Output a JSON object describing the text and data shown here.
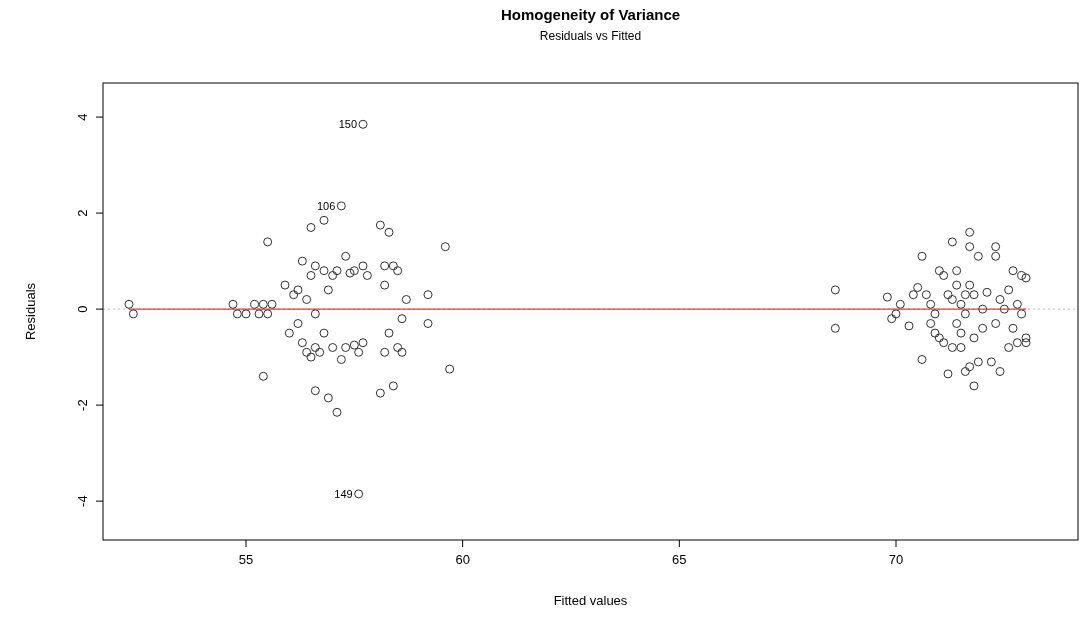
{
  "chart_data": {
    "type": "scatter",
    "title": "Homogeneity of Variance",
    "subtitle": "Residuals vs Fitted",
    "xlabel": "Fitted values",
    "ylabel": "Residuals",
    "xlim": [
      51.7,
      74.2
    ],
    "ylim": [
      -4.81,
      4.71
    ],
    "xticks": [
      55,
      60,
      65,
      70
    ],
    "yticks": [
      -4,
      -2,
      0,
      2,
      4
    ],
    "marker": "circle",
    "series": [
      {
        "color": "#333333",
        "x": [
          52.3,
          52.4,
          54.7,
          54.8,
          55.0,
          55.2,
          55.3,
          55.4,
          55.5,
          55.6,
          55.5,
          55.4,
          55.9,
          56.0,
          56.1,
          56.2,
          56.2,
          56.3,
          56.3,
          56.4,
          56.4,
          56.5,
          56.5,
          56.5,
          56.6,
          56.6,
          56.6,
          56.6,
          56.7,
          56.8,
          56.8,
          56.8,
          56.9,
          56.9,
          57.0,
          57.0,
          57.1,
          57.1,
          57.2,
          57.3,
          57.3,
          57.4,
          57.5,
          57.5,
          57.6,
          57.7,
          57.7,
          57.2,
          57.6,
          57.8,
          57.7,
          58.1,
          58.2,
          58.3,
          58.2,
          58.2,
          58.3,
          58.1,
          58.4,
          58.4,
          58.5,
          58.5,
          58.6,
          58.6,
          58.7,
          59.2,
          59.2,
          59.6,
          59.7,
          68.6,
          68.6,
          69.8,
          69.9,
          70.0,
          70.1,
          70.3,
          70.4,
          70.5,
          70.6,
          70.6,
          70.7,
          70.8,
          70.8,
          70.9,
          70.9,
          71.0,
          71.0,
          71.1,
          71.1,
          71.2,
          71.2,
          71.3,
          71.3,
          71.3,
          71.4,
          71.4,
          71.4,
          71.5,
          71.5,
          71.5,
          71.6,
          71.6,
          71.6,
          71.7,
          71.7,
          71.7,
          71.7,
          71.8,
          71.8,
          71.8,
          71.9,
          71.9,
          72.0,
          72.0,
          72.1,
          72.2,
          72.3,
          72.3,
          72.3,
          72.4,
          72.4,
          72.5,
          72.6,
          72.6,
          72.7,
          72.7,
          72.8,
          72.8,
          72.9,
          72.9,
          73.0,
          73.0,
          73.0
        ],
        "values": [
          0.1,
          -0.1,
          0.1,
          -0.1,
          -0.1,
          0.1,
          -0.1,
          0.1,
          -0.1,
          0.1,
          1.4,
          -1.4,
          0.5,
          -0.5,
          0.3,
          0.4,
          -0.3,
          1.0,
          -0.7,
          -0.9,
          0.2,
          1.7,
          -1.0,
          0.7,
          -0.1,
          0.9,
          -0.8,
          -1.7,
          -0.9,
          1.85,
          0.8,
          -0.5,
          -1.85,
          0.4,
          0.7,
          -0.8,
          -2.15,
          0.8,
          -1.05,
          1.1,
          -0.8,
          0.75,
          -0.75,
          0.8,
          -0.9,
          0.9,
          3.85,
          2.15,
          -3.85,
          0.7,
          -0.7,
          1.75,
          0.9,
          1.6,
          0.5,
          -0.9,
          -0.5,
          -1.75,
          -1.6,
          0.9,
          0.8,
          -0.8,
          -0.9,
          -0.2,
          0.2,
          -0.3,
          0.3,
          1.3,
          -1.25,
          0.4,
          -0.4,
          0.25,
          -0.2,
          -0.1,
          0.1,
          -0.35,
          0.3,
          0.45,
          -1.05,
          1.1,
          0.3,
          -0.3,
          0.1,
          -0.1,
          -0.5,
          0.8,
          -0.6,
          -0.7,
          0.7,
          0.3,
          -1.35,
          -0.8,
          1.4,
          0.2,
          0.8,
          -0.3,
          0.5,
          -0.5,
          0.1,
          -0.8,
          0.3,
          -1.3,
          -0.1,
          1.6,
          1.3,
          0.5,
          -1.2,
          0.3,
          -0.6,
          -1.6,
          1.1,
          -1.1,
          -0.4,
          0.0,
          0.35,
          -1.1,
          1.3,
          1.1,
          -0.3,
          0.2,
          -1.3,
          0.0,
          -0.8,
          0.4,
          0.8,
          -0.4,
          0.1,
          -0.7,
          0.7,
          -0.1,
          0.65,
          -0.6,
          -0.7
        ]
      },
      {
        "type": "line",
        "color": "#ff0000",
        "line_style": "solid",
        "marker": "none",
        "x": [
          52.3,
          73.0
        ],
        "values": [
          0,
          0
        ]
      }
    ],
    "ref_lines": [
      {
        "axis": "y",
        "value": 0,
        "color": "#bebebe",
        "line_style": "dotted"
      }
    ],
    "annotations": [
      {
        "text": "150",
        "x": 57.7,
        "y": 3.85
      },
      {
        "text": "106",
        "x": 57.2,
        "y": 2.15
      },
      {
        "text": "149",
        "x": 57.6,
        "y": -3.85
      }
    ]
  }
}
